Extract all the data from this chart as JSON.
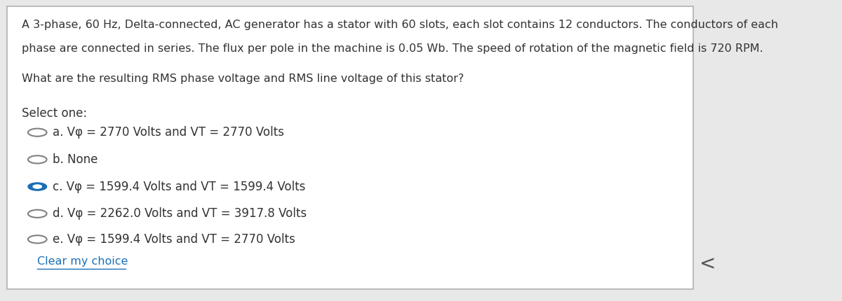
{
  "background_color": "#ffffff",
  "border_color": "#b0b0b0",
  "question_text_line1": "A 3-phase, 60 Hz, Delta-connected, AC generator has a stator with 60 slots, each slot contains 12 conductors. The conductors of each",
  "question_text_line2": "phase are connected in series. The flux per pole in the machine is 0.05 Wb. The speed of rotation of the magnetic field is 720 RPM.",
  "question_text_line3": "What are the resulting RMS phase voltage and RMS line voltage of this stator?",
  "select_one": "Select one:",
  "options": [
    {
      "label": "a",
      "text": "Vφ = 2770 Volts and VT = 2770 Volts",
      "selected": false
    },
    {
      "label": "b",
      "text": "None",
      "selected": false
    },
    {
      "label": "c",
      "text": "Vφ = 1599.4 Volts and VT = 1599.4 Volts",
      "selected": true
    },
    {
      "label": "d",
      "text": "Vφ = 2262.0 Volts and VT = 3917.8 Volts",
      "selected": false
    },
    {
      "label": "e",
      "text": "Vφ = 1599.4 Volts and VT = 2770 Volts",
      "selected": false
    }
  ],
  "clear_choice_text": "Clear my choice",
  "circle_color_unselected": "#808080",
  "circle_color_selected": "#1a6eb5",
  "text_color": "#333333",
  "link_color": "#1a6eb5",
  "outer_bg": "#e8e8e8",
  "font_size_question": 11.5,
  "font_size_options": 12,
  "font_size_select": 12,
  "right_arrow": "<"
}
